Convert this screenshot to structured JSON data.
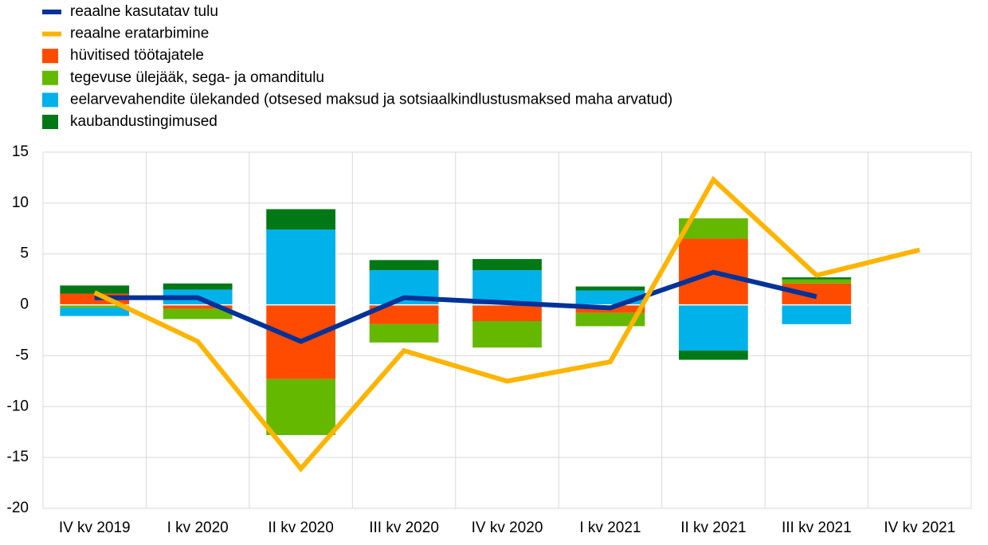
{
  "chart_data": {
    "type": "bar",
    "stacked": true,
    "categories": [
      "IV kv 2019",
      "I kv 2020",
      "II kv 2020",
      "III kv 2020",
      "IV kv 2020",
      "I kv 2021",
      "II kv 2021",
      "III kv 2021",
      "IV kv 2021"
    ],
    "series": [
      {
        "name": "reaalne kasutatav tulu",
        "type": "line",
        "color": "#003299",
        "values": [
          0.7,
          0.7,
          -3.6,
          0.7,
          0.2,
          -0.3,
          3.2,
          0.8,
          null
        ]
      },
      {
        "name": "reaalne eratarbimine",
        "type": "line",
        "color": "#ffb400",
        "values": [
          1.2,
          -3.6,
          -16.1,
          -4.5,
          -7.5,
          -5.6,
          12.3,
          2.9,
          5.4
        ]
      },
      {
        "name": "hüvitised töötajatele",
        "type": "bar",
        "color": "#ff4b00",
        "values": [
          1.1,
          -0.4,
          -7.3,
          -1.9,
          -1.6,
          -0.8,
          6.5,
          2.1,
          null
        ]
      },
      {
        "name": "tegevuse ülejääk, sega- ja omanditulu",
        "type": "bar",
        "color": "#65b800",
        "values": [
          -0.3,
          -1.0,
          -5.5,
          -1.8,
          -2.6,
          -1.3,
          2.0,
          0.4,
          null
        ]
      },
      {
        "name": "eelarvevahendite ülekanded (otsesed maksud ja sotsiaalkindlustusmaksed maha arvatud)",
        "type": "bar",
        "color": "#00b1ea",
        "values": [
          -0.8,
          1.5,
          7.4,
          3.4,
          3.4,
          1.4,
          -4.5,
          -1.9,
          null
        ]
      },
      {
        "name": "kaubandustingimused",
        "type": "bar",
        "color": "#007816",
        "values": [
          0.8,
          0.6,
          2.0,
          1.0,
          1.1,
          0.4,
          -0.9,
          0.2,
          null
        ]
      }
    ],
    "ylim": [
      -20,
      15
    ],
    "yticks": [
      -20,
      -15,
      -10,
      -5,
      0,
      5,
      10,
      15
    ],
    "grid": true,
    "legend": "top-left"
  }
}
